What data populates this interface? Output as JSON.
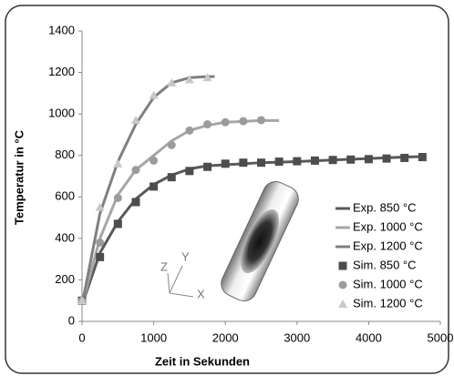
{
  "chart_data": {
    "type": "line",
    "x_label": "Zeit in Sekunden",
    "y_label": "Temperatur in °C",
    "xlim": [
      0,
      5000
    ],
    "xticks": [
      0,
      1000,
      2000,
      3000,
      4000,
      5000
    ],
    "ylim": [
      0,
      1400
    ],
    "yticks": [
      0,
      200,
      400,
      600,
      800,
      1000,
      1200,
      1400
    ],
    "grid": false,
    "legend": "right",
    "annotations": [
      "Z",
      "Y",
      "X"
    ],
    "series": [
      {
        "name": "Exp. 850 °C",
        "kind": "line",
        "color": "#595959",
        "x": [
          0,
          250,
          500,
          750,
          1000,
          1250,
          1500,
          1750,
          2000,
          2500,
          3000,
          3500,
          4000,
          4500,
          4800
        ],
        "values": [
          80,
          330,
          480,
          590,
          660,
          705,
          735,
          750,
          755,
          765,
          770,
          778,
          785,
          792,
          795
        ]
      },
      {
        "name": "Exp. 1000 °C",
        "kind": "line",
        "color": "#a6a6a6",
        "x": [
          0,
          250,
          500,
          750,
          1000,
          1250,
          1500,
          1750,
          2000,
          2500,
          2750
        ],
        "values": [
          80,
          400,
          610,
          730,
          800,
          870,
          920,
          945,
          960,
          968,
          968
        ]
      },
      {
        "name": "Exp. 1200 °C",
        "kind": "line",
        "color": "#808080",
        "x": [
          0,
          250,
          500,
          750,
          1000,
          1250,
          1500,
          1750,
          1850
        ],
        "values": [
          80,
          520,
          770,
          950,
          1080,
          1150,
          1175,
          1180,
          1180
        ]
      },
      {
        "name": "Sim. 850 °C",
        "kind": "marker",
        "marker": "square",
        "color": "#4d4d4d",
        "x": [
          0,
          250,
          500,
          750,
          1000,
          1250,
          1500,
          1750,
          2000,
          2250,
          2500,
          2750,
          3000,
          3250,
          3500,
          3750,
          4000,
          4250,
          4500,
          4750
        ],
        "values": [
          100,
          310,
          470,
          575,
          650,
          695,
          725,
          745,
          760,
          765,
          765,
          770,
          772,
          775,
          778,
          780,
          782,
          785,
          788,
          792
        ]
      },
      {
        "name": "Sim. 1000 °C",
        "kind": "marker",
        "marker": "circle",
        "color": "#9b9b9b",
        "x": [
          0,
          250,
          500,
          750,
          1000,
          1250,
          1500,
          1750,
          2000,
          2250,
          2500
        ],
        "values": [
          100,
          380,
          595,
          730,
          775,
          850,
          920,
          950,
          960,
          965,
          970
        ]
      },
      {
        "name": "Sim. 1200 °C",
        "kind": "marker",
        "marker": "triangle",
        "color": "#c8c8c8",
        "x": [
          0,
          250,
          500,
          750,
          1000,
          1250,
          1500,
          1750
        ],
        "values": [
          100,
          550,
          760,
          970,
          1090,
          1150,
          1165,
          1175
        ]
      }
    ]
  }
}
